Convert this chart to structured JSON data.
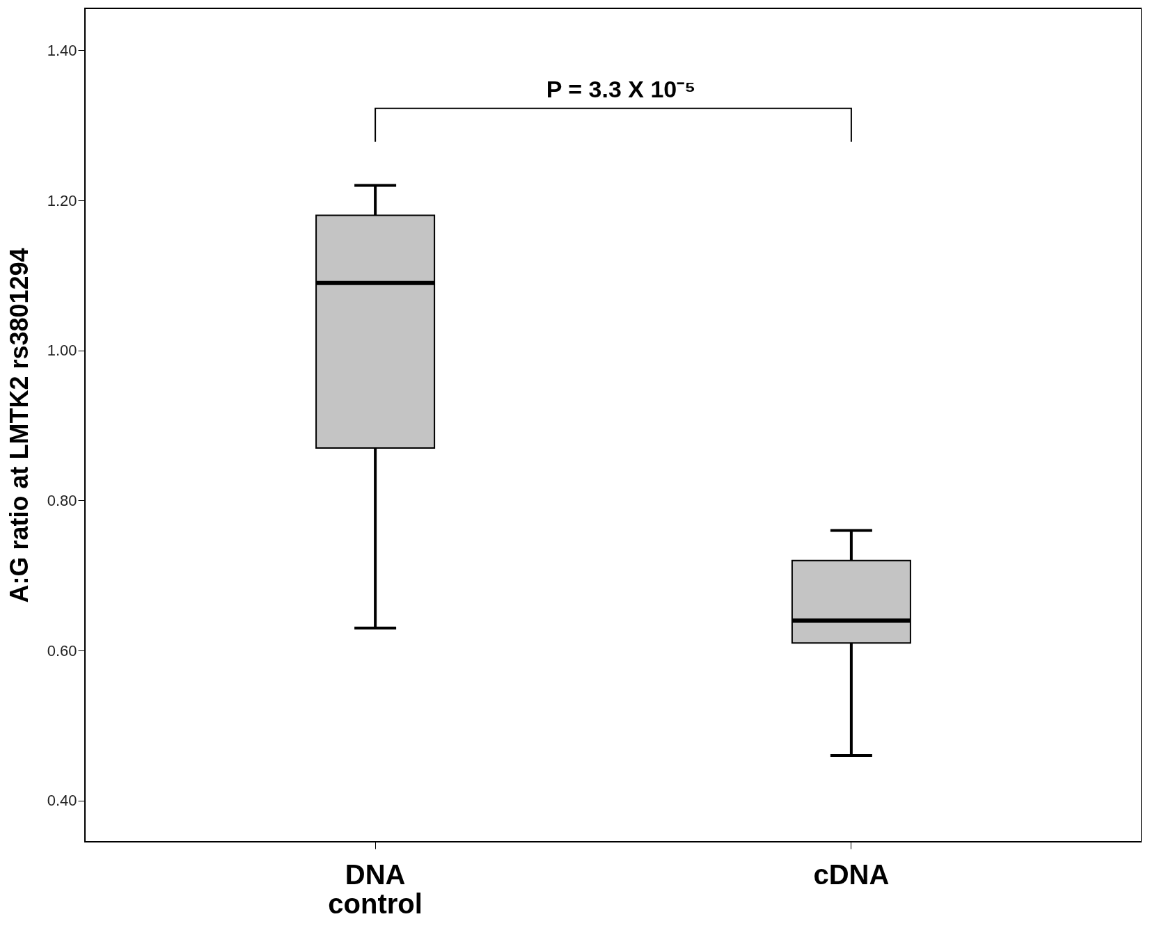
{
  "chart_data": {
    "type": "box",
    "ylabel": "A:G ratio at LMTK2 rs3801294",
    "categories": [
      "DNA control",
      "cDNA"
    ],
    "color": "#c4c4c4",
    "boxes": [
      {
        "low": 0.63,
        "q1": 0.87,
        "median": 1.09,
        "q3": 1.18,
        "high": 1.22
      },
      {
        "low": 0.46,
        "q1": 0.61,
        "median": 0.64,
        "q3": 0.72,
        "high": 0.76
      }
    ],
    "ylim": [
      0.345,
      1.456
    ],
    "yticks": [
      {
        "value": 0.4,
        "label": "0.40"
      },
      {
        "value": 0.6,
        "label": "0.60"
      },
      {
        "value": 0.8,
        "label": "0.80"
      },
      {
        "value": 1.0,
        "label": "1.00"
      },
      {
        "value": 1.2,
        "label": "1.20"
      },
      {
        "value": 1.4,
        "label": "1.40"
      }
    ],
    "grid": false,
    "annotations": [
      "P = 3.3 X 10⁻⁵"
    ]
  }
}
